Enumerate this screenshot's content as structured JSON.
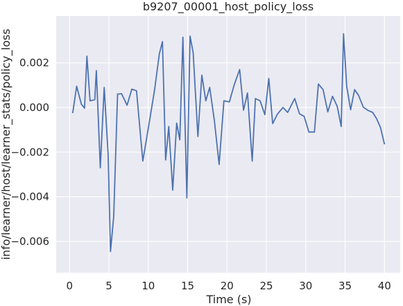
{
  "chart_data": {
    "type": "line",
    "title": "b9207_00001_host_policy_loss",
    "xlabel": "Time (s)",
    "ylabel": "info/learner/host/learner_stats/policy_loss",
    "xlim": [
      -1.7,
      42.0
    ],
    "ylim": [
      -0.0074,
      0.0041
    ],
    "x_ticks": [
      0,
      5,
      10,
      15,
      20,
      25,
      30,
      35,
      40
    ],
    "x_tick_labels": [
      "0",
      "5",
      "10",
      "15",
      "20",
      "25",
      "30",
      "35",
      "40"
    ],
    "y_ticks": [
      -0.006,
      -0.004,
      -0.002,
      0.0,
      0.002
    ],
    "y_tick_labels": [
      "−0.006",
      "−0.004",
      "−0.002",
      "0.000",
      "0.002"
    ],
    "grid": true,
    "colors": {
      "background": "#eaeaf2",
      "grid": "#ffffff",
      "line": "#4c72b0",
      "text": "#262626"
    },
    "series": [
      {
        "x": [
          0.4,
          0.9,
          1.5,
          1.9,
          2.2,
          2.6,
          3.2,
          3.4,
          3.9,
          4.4,
          4.9,
          5.2,
          5.6,
          6.1,
          6.6,
          7.3,
          7.9,
          8.5,
          9.3,
          10.2,
          10.8,
          11.4,
          11.8,
          12.2,
          12.6,
          13.1,
          13.6,
          14.0,
          14.4,
          14.9,
          15.3,
          15.7,
          16.3,
          16.8,
          17.3,
          17.8,
          18.4,
          19.0,
          19.6,
          20.3,
          20.9,
          21.6,
          22.1,
          22.6,
          23.2,
          23.6,
          24.2,
          24.8,
          25.3,
          25.8,
          26.4,
          27.1,
          27.7,
          28.6,
          29.2,
          29.8,
          30.4,
          31.1,
          31.6,
          32.2,
          32.8,
          33.4,
          34.0,
          34.5,
          34.8,
          35.2,
          35.7,
          36.2,
          36.7,
          37.3,
          37.9,
          38.5,
          39.0,
          39.5,
          40.0
        ],
        "y": [
          -0.00025,
          0.00095,
          0.00015,
          -3e-05,
          0.0023,
          0.0003,
          0.00035,
          0.00165,
          -0.0027,
          0.0009,
          -0.0021,
          -0.00645,
          -0.0049,
          0.0006,
          0.00062,
          0.0001,
          0.00082,
          0.00075,
          -0.0024,
          -0.0005,
          0.0008,
          0.0024,
          0.00295,
          -0.00235,
          -0.00085,
          -0.0037,
          -0.0007,
          -0.00145,
          0.00315,
          -0.00405,
          0.0032,
          0.00245,
          -0.0013,
          0.00145,
          0.0003,
          0.0009,
          -0.0006,
          -0.00255,
          0.0003,
          0.00025,
          0.001,
          0.0017,
          -0.00012,
          0.00065,
          -0.0024,
          0.0004,
          0.0003,
          -0.00032,
          0.0013,
          -0.00072,
          -0.0003,
          0.0,
          -0.00022,
          0.0004,
          -0.00028,
          -0.0004,
          -0.0011,
          -0.0011,
          0.00105,
          0.0008,
          -0.0002,
          0.0005,
          5e-05,
          -0.00085,
          0.0033,
          0.00095,
          -0.0001,
          0.0008,
          0.00055,
          2e-05,
          -0.00013,
          -0.00022,
          -0.0005,
          -0.0009,
          -0.00165
        ]
      }
    ]
  }
}
